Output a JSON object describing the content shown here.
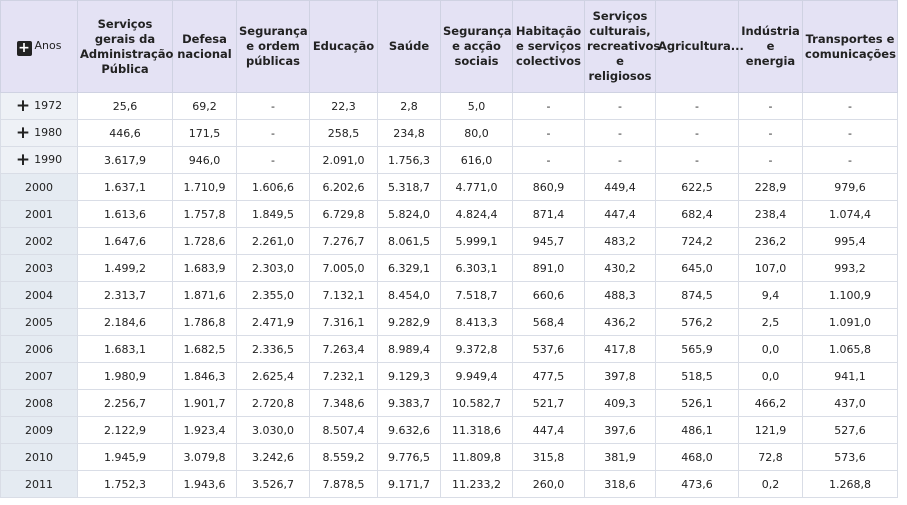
{
  "table": {
    "corner": "Anos",
    "columns": [
      "Serviços gerais da Administração Pública",
      "Defesa nacional",
      "Segurança e ordem públicas",
      "Educação",
      "Saúde",
      "Segurança e acção sociais",
      "Habitação e serviços colectivos",
      "Serviços culturais, recreativos e religiosos",
      "Agricultura...",
      "Indústria e energia",
      "Transportes e comunicações"
    ],
    "rows": [
      {
        "year": "1972",
        "expandable": true,
        "cells": [
          "25,6",
          "69,2",
          "-",
          "22,3",
          "2,8",
          "5,0",
          "-",
          "-",
          "-",
          "-",
          "-"
        ]
      },
      {
        "year": "1980",
        "expandable": true,
        "cells": [
          "446,6",
          "171,5",
          "-",
          "258,5",
          "234,8",
          "80,0",
          "-",
          "-",
          "-",
          "-",
          "-"
        ]
      },
      {
        "year": "1990",
        "expandable": true,
        "cells": [
          "3.617,9",
          "946,0",
          "-",
          "2.091,0",
          "1.756,3",
          "616,0",
          "-",
          "-",
          "-",
          "-",
          "-"
        ]
      },
      {
        "year": "2000",
        "expandable": false,
        "cells": [
          "1.637,1",
          "1.710,9",
          "1.606,6",
          "6.202,6",
          "5.318,7",
          "4.771,0",
          "860,9",
          "449,4",
          "622,5",
          "228,9",
          "979,6"
        ]
      },
      {
        "year": "2001",
        "expandable": false,
        "cells": [
          "1.613,6",
          "1.757,8",
          "1.849,5",
          "6.729,8",
          "5.824,0",
          "4.824,4",
          "871,4",
          "447,4",
          "682,4",
          "238,4",
          "1.074,4"
        ]
      },
      {
        "year": "2002",
        "expandable": false,
        "cells": [
          "1.647,6",
          "1.728,6",
          "2.261,0",
          "7.276,7",
          "8.061,5",
          "5.999,1",
          "945,7",
          "483,2",
          "724,2",
          "236,2",
          "995,4"
        ]
      },
      {
        "year": "2003",
        "expandable": false,
        "cells": [
          "1.499,2",
          "1.683,9",
          "2.303,0",
          "7.005,0",
          "6.329,1",
          "6.303,1",
          "891,0",
          "430,2",
          "645,0",
          "107,0",
          "993,2"
        ]
      },
      {
        "year": "2004",
        "expandable": false,
        "cells": [
          "2.313,7",
          "1.871,6",
          "2.355,0",
          "7.132,1",
          "8.454,0",
          "7.518,7",
          "660,6",
          "488,3",
          "874,5",
          "9,4",
          "1.100,9"
        ]
      },
      {
        "year": "2005",
        "expandable": false,
        "cells": [
          "2.184,6",
          "1.786,8",
          "2.471,9",
          "7.316,1",
          "9.282,9",
          "8.413,3",
          "568,4",
          "436,2",
          "576,2",
          "2,5",
          "1.091,0"
        ]
      },
      {
        "year": "2006",
        "expandable": false,
        "cells": [
          "1.683,1",
          "1.682,5",
          "2.336,5",
          "7.263,4",
          "8.989,4",
          "9.372,8",
          "537,6",
          "417,8",
          "565,9",
          "0,0",
          "1.065,8"
        ]
      },
      {
        "year": "2007",
        "expandable": false,
        "cells": [
          "1.980,9",
          "1.846,3",
          "2.625,4",
          "7.232,1",
          "9.129,3",
          "9.949,4",
          "477,5",
          "397,8",
          "518,5",
          "0,0",
          "941,1"
        ]
      },
      {
        "year": "2008",
        "expandable": false,
        "cells": [
          "2.256,7",
          "1.901,7",
          "2.720,8",
          "7.348,6",
          "9.383,7",
          "10.582,7",
          "521,7",
          "409,3",
          "526,1",
          "466,2",
          "437,0"
        ]
      },
      {
        "year": "2009",
        "expandable": false,
        "cells": [
          "2.122,9",
          "1.923,4",
          "3.030,0",
          "8.507,4",
          "9.632,6",
          "11.318,6",
          "447,4",
          "397,6",
          "486,1",
          "121,9",
          "527,6"
        ]
      },
      {
        "year": "2010",
        "expandable": false,
        "cells": [
          "1.945,9",
          "3.079,8",
          "3.242,6",
          "8.559,2",
          "9.776,5",
          "11.809,8",
          "315,8",
          "381,9",
          "468,0",
          "72,8",
          "573,6"
        ]
      },
      {
        "year": "2011",
        "expandable": false,
        "cells": [
          "1.752,3",
          "1.943,6",
          "3.526,7",
          "7.878,5",
          "9.171,7",
          "11.233,2",
          "260,0",
          "318,6",
          "473,6",
          "0,2",
          "1.268,8"
        ]
      }
    ]
  }
}
